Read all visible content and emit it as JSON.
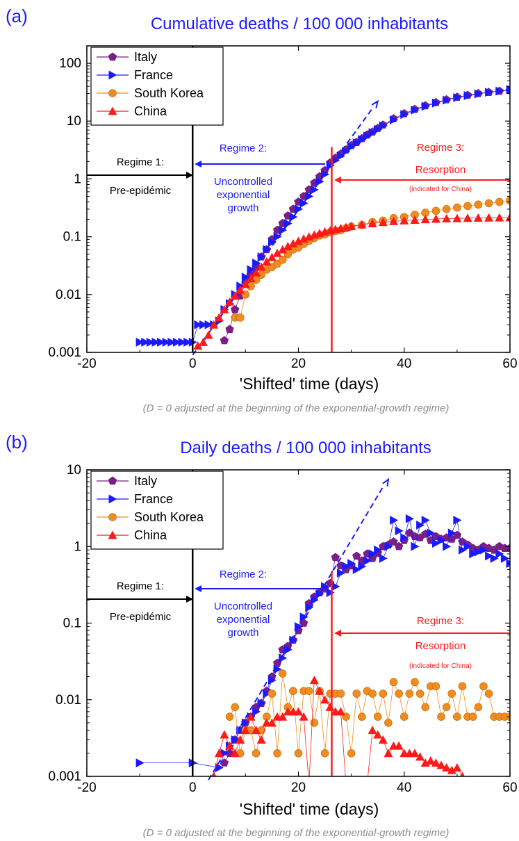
{
  "chart_data": [
    {
      "panel_label": "(a)",
      "type": "scatter",
      "title": "Cumulative deaths / 100 000 inhabitants",
      "xlabel": "'Shifted' time (days)",
      "ylabel": "",
      "xlim": [
        -20,
        60
      ],
      "ylim": [
        0.001,
        200
      ],
      "yscale": "log",
      "x_ticks": [
        -20,
        0,
        20,
        40,
        60
      ],
      "y_ticks": [
        {
          "value": 0.001,
          "label": "0.001"
        },
        {
          "value": 0.01,
          "label": "0.01"
        },
        {
          "value": 0.1,
          "label": "0.1"
        },
        {
          "value": 1,
          "label": "1"
        },
        {
          "value": 10,
          "label": "10"
        },
        {
          "value": 100,
          "label": "100"
        }
      ],
      "note": "(D = 0 adjusted at the beginning of the exponential-growth regime)",
      "legend_position": "top-left",
      "series": [
        {
          "name": "Italy",
          "color": "#7a1f85",
          "marker": "pentagon",
          "x": [
            6,
            7,
            8,
            9,
            10,
            11,
            12,
            13,
            14,
            15,
            16,
            17,
            18,
            19,
            20,
            21,
            22,
            23,
            24,
            25,
            26,
            27,
            28,
            29,
            30,
            31,
            32,
            33,
            34,
            35,
            36,
            38,
            40,
            42,
            44,
            46,
            48,
            50,
            52,
            54,
            56,
            58,
            60
          ],
          "y": [
            0.0016,
            0.0025,
            0.0055,
            0.0095,
            0.016,
            0.022,
            0.03,
            0.045,
            0.06,
            0.09,
            0.13,
            0.17,
            0.23,
            0.3,
            0.4,
            0.5,
            0.65,
            0.85,
            1.1,
            1.4,
            1.9,
            2.3,
            2.7,
            3.2,
            3.8,
            4.3,
            5.0,
            5.8,
            6.5,
            7.5,
            8.6,
            11,
            13.5,
            16,
            18.5,
            21,
            23.5,
            26,
            28,
            30,
            31.5,
            33,
            34
          ]
        },
        {
          "name": "France",
          "color": "#1a1aff",
          "marker": "triangle-right",
          "x": [
            -10,
            -9,
            -8,
            -7,
            -6,
            -5,
            -4,
            -3,
            -2,
            -1,
            0,
            1,
            2,
            3,
            4,
            5,
            6,
            7,
            8,
            9,
            10,
            11,
            12,
            13,
            14,
            15,
            16,
            17,
            18,
            19,
            20,
            21,
            22,
            23,
            24,
            25,
            26,
            27,
            28,
            29,
            30,
            31,
            32,
            33,
            34,
            35,
            36,
            38,
            40,
            42,
            44,
            46,
            48,
            50,
            52,
            54,
            56,
            58,
            60
          ],
          "y": [
            0.0015,
            0.0015,
            0.0015,
            0.0015,
            0.0015,
            0.0015,
            0.0015,
            0.0015,
            0.0015,
            0.0015,
            0.0015,
            0.003,
            0.003,
            0.003,
            0.003,
            0.0035,
            0.0055,
            0.007,
            0.01,
            0.014,
            0.02,
            0.027,
            0.035,
            0.045,
            0.06,
            0.08,
            0.1,
            0.13,
            0.17,
            0.22,
            0.3,
            0.38,
            0.5,
            0.65,
            0.9,
            1.2,
            1.7,
            2.1,
            2.5,
            3.0,
            3.6,
            4.2,
            4.8,
            5.5,
            6.3,
            7.2,
            8.3,
            10.5,
            13,
            15.5,
            18,
            20.5,
            23,
            25.5,
            27.5,
            29.5,
            31.5,
            33,
            35
          ]
        },
        {
          "name": "South Korea",
          "color": "#f08c1e",
          "marker": "circle",
          "x": [
            8,
            9,
            10,
            11,
            12,
            13,
            14,
            15,
            16,
            17,
            18,
            19,
            20,
            21,
            22,
            23,
            24,
            25,
            26,
            27,
            28,
            29,
            30,
            32,
            34,
            36,
            38,
            40,
            42,
            44,
            46,
            48,
            50,
            52,
            54,
            56,
            58,
            60
          ],
          "y": [
            0.004,
            0.004,
            0.01,
            0.014,
            0.018,
            0.022,
            0.027,
            0.03,
            0.034,
            0.04,
            0.05,
            0.06,
            0.065,
            0.075,
            0.085,
            0.095,
            0.105,
            0.11,
            0.12,
            0.125,
            0.13,
            0.14,
            0.15,
            0.16,
            0.18,
            0.19,
            0.21,
            0.22,
            0.24,
            0.26,
            0.28,
            0.3,
            0.32,
            0.34,
            0.36,
            0.38,
            0.4,
            0.42
          ]
        },
        {
          "name": "China",
          "color": "#ff1a1a",
          "marker": "triangle-up",
          "x": [
            1,
            2,
            3,
            4,
            5,
            6,
            7,
            8,
            9,
            10,
            11,
            12,
            13,
            14,
            15,
            16,
            17,
            18,
            19,
            20,
            21,
            22,
            23,
            24,
            25,
            26,
            27,
            28,
            29,
            30,
            32,
            34,
            36,
            38,
            40,
            42,
            44,
            46,
            48,
            50,
            52,
            54,
            56,
            58,
            60
          ],
          "y": [
            0.0013,
            0.0015,
            0.002,
            0.003,
            0.004,
            0.0055,
            0.0075,
            0.0095,
            0.012,
            0.015,
            0.019,
            0.024,
            0.03,
            0.037,
            0.044,
            0.052,
            0.06,
            0.068,
            0.076,
            0.084,
            0.092,
            0.1,
            0.108,
            0.115,
            0.122,
            0.128,
            0.134,
            0.14,
            0.146,
            0.152,
            0.162,
            0.17,
            0.178,
            0.185,
            0.19,
            0.195,
            0.2,
            0.203,
            0.206,
            0.208,
            0.21,
            0.212,
            0.213,
            0.214,
            0.215
          ]
        }
      ],
      "fits": [
        {
          "color": "#1a1aff",
          "dashed": true,
          "x": [
            0,
            35
          ],
          "y": [
            0.0009,
            22
          ]
        }
      ],
      "regime_lines": [
        {
          "x": 0,
          "color": "#000000"
        },
        {
          "x": 26.3,
          "color": "#ff1a1a"
        }
      ],
      "annotations": {
        "regime1": {
          "title": "Regime 1:",
          "text": "Pre-epidémic",
          "color": "#000000"
        },
        "regime2": {
          "title": "Regime 2:",
          "lines": [
            "Uncontrolled",
            "exponential",
            "growth"
          ],
          "color": "#1a1aff"
        },
        "regime3": {
          "title": "Regime 3:",
          "text": "Resorption",
          "subtext": "(indicated for China)",
          "color": "#ff1a1a"
        }
      }
    },
    {
      "panel_label": "(b)",
      "type": "scatter",
      "title": "Daily deaths / 100 000 inhabitants",
      "xlabel": "'Shifted' time (days)",
      "ylabel": "",
      "xlim": [
        -20,
        60
      ],
      "ylim": [
        0.001,
        10
      ],
      "yscale": "log",
      "x_ticks": [
        -20,
        0,
        20,
        40,
        60
      ],
      "y_ticks": [
        {
          "value": 0.001,
          "label": "0.001"
        },
        {
          "value": 0.01,
          "label": "0.01"
        },
        {
          "value": 0.1,
          "label": "0.1"
        },
        {
          "value": 1,
          "label": "1"
        },
        {
          "value": 10,
          "label": "10"
        }
      ],
      "note": "(D = 0 adjusted at the beginning of the exponential-growth regime)",
      "legend_position": "top-left",
      "series": [
        {
          "name": "Italy",
          "color": "#7a1f85",
          "marker": "pentagon",
          "x": [
            6,
            7,
            8,
            9,
            10,
            11,
            12,
            13,
            14,
            15,
            16,
            17,
            18,
            19,
            20,
            21,
            22,
            23,
            24,
            25,
            26,
            27,
            28,
            29,
            30,
            31,
            32,
            33,
            34,
            35,
            36,
            37,
            38,
            39,
            40,
            41,
            42,
            43,
            44,
            45,
            46,
            47,
            48,
            49,
            50,
            51,
            52,
            53,
            54,
            55,
            56,
            57,
            58,
            59,
            60
          ],
          "y": [
            0.0015,
            0.002,
            0.003,
            0.004,
            0.005,
            0.006,
            0.008,
            0.009,
            0.013,
            0.02,
            0.03,
            0.045,
            0.05,
            0.06,
            0.08,
            0.1,
            0.18,
            0.22,
            0.25,
            0.28,
            0.33,
            0.72,
            0.56,
            0.5,
            0.56,
            0.75,
            0.65,
            0.8,
            0.7,
            0.82,
            1.0,
            1.05,
            1.15,
            1.0,
            1.2,
            1.5,
            1.35,
            1.3,
            1.45,
            1.2,
            1.35,
            1.25,
            1.3,
            1.25,
            1.4,
            1.15,
            1.05,
            0.95,
            0.9,
            1.0,
            0.95,
            0.9,
            1.0,
            0.95,
            0.95
          ]
        },
        {
          "name": "France",
          "color": "#1a1aff",
          "marker": "triangle-right",
          "x": [
            -10,
            0,
            5,
            6,
            7,
            8,
            9,
            10,
            11,
            12,
            13,
            14,
            15,
            16,
            17,
            18,
            19,
            20,
            21,
            22,
            23,
            24,
            25,
            26,
            27,
            28,
            29,
            30,
            31,
            32,
            33,
            34,
            35,
            36,
            37,
            38,
            39,
            40,
            41,
            42,
            43,
            44,
            45,
            46,
            47,
            48,
            49,
            50,
            51,
            52,
            53,
            54,
            55,
            56,
            57,
            58,
            59,
            60
          ],
          "y": [
            0.0015,
            0.0015,
            0.0013,
            0.002,
            0.0025,
            0.003,
            0.004,
            0.005,
            0.006,
            0.007,
            0.009,
            0.012,
            0.018,
            0.025,
            0.035,
            0.045,
            0.06,
            0.09,
            0.12,
            0.16,
            0.2,
            0.24,
            0.3,
            0.25,
            0.3,
            0.45,
            0.55,
            0.6,
            0.5,
            0.55,
            0.65,
            0.8,
            0.9,
            0.7,
            1.0,
            2.2,
            1.6,
            1.3,
            2.3,
            1.0,
            1.9,
            2.2,
            1.5,
            1.1,
            1.2,
            1.0,
            1.5,
            2.2,
            0.9,
            1.0,
            0.8,
            0.85,
            0.9,
            0.75,
            0.7,
            0.8,
            0.7,
            0.6
          ]
        },
        {
          "name": "South Korea",
          "color": "#f08c1e",
          "marker": "circle",
          "x": [
            7,
            8,
            9,
            10,
            11,
            12,
            13,
            14,
            15,
            16,
            17,
            18,
            19,
            20,
            21,
            22,
            23,
            24,
            25,
            26,
            27,
            28,
            29,
            30,
            31,
            32,
            33,
            34,
            35,
            36,
            37,
            38,
            39,
            40,
            41,
            42,
            43,
            44,
            45,
            46,
            47,
            48,
            49,
            50,
            51,
            52,
            53,
            54,
            55,
            56,
            57,
            58,
            59,
            60
          ],
          "y": [
            0.006,
            0.008,
            0.002,
            0.004,
            0.004,
            0.002,
            0.004,
            0.006,
            0.012,
            0.002,
            0.022,
            0.008,
            0.013,
            0.002,
            0.013,
            0.013,
            0.005,
            0.013,
            0.002,
            0.012,
            0.012,
            0.012,
            0.006,
            0.002,
            0.012,
            0.006,
            0.013,
            0.012,
            0.006,
            0.012,
            0.005,
            0.017,
            0.012,
            0.006,
            0.012,
            0.017,
            0.012,
            0.008,
            0.015,
            0.015,
            0.006,
            0.008,
            0.012,
            0.006,
            0.015,
            0.006,
            0.006,
            0.008,
            0.015,
            0.012,
            0.006,
            0.006,
            0.006,
            0.006
          ]
        },
        {
          "name": "China",
          "color": "#ff1a1a",
          "marker": "triangle-up",
          "x": [
            4,
            5,
            6,
            7,
            8,
            9,
            10,
            11,
            12,
            13,
            14,
            15,
            16,
            17,
            18,
            19,
            20,
            21,
            22,
            23,
            24,
            25,
            26,
            27,
            28,
            29,
            30,
            31,
            32,
            33,
            34,
            35,
            36,
            37,
            38,
            39,
            40,
            41,
            42,
            43,
            44,
            45,
            46,
            47,
            48,
            49,
            50,
            51,
            52,
            53,
            54,
            55,
            56,
            57,
            58,
            59,
            60
          ],
          "y": [
            0.001,
            0.002,
            0.0035,
            0.0025,
            0.002,
            0.003,
            0.004,
            0.006,
            0.004,
            0.003,
            0.005,
            0.005,
            0.006,
            0.006,
            0.007,
            0.007,
            0.007,
            0.006,
            0.0008,
            0.018,
            0.013,
            0.01,
            0.008,
            0.007,
            0.007,
            0.0008,
            0.0008,
            0.0008,
            0.0008,
            0.0008,
            0.004,
            0.0035,
            0.003,
            0.002,
            0.0025,
            0.0025,
            0.002,
            0.002,
            0.002,
            0.0018,
            0.0015,
            0.0016,
            0.0015,
            0.0014,
            0.0013,
            0.0012,
            0.0013,
            0.001,
            0.0009,
            0.0008,
            0.0008,
            0.0008,
            0.0008,
            0.0008,
            0.0008,
            0.0008,
            0.0008
          ]
        }
      ],
      "fits": [
        {
          "color": "#1a1aff",
          "dashed": true,
          "x": [
            3,
            37
          ],
          "y": [
            0.0009,
            7.5
          ]
        }
      ],
      "regime_lines": [
        {
          "x": 0,
          "color": "#000000"
        },
        {
          "x": 26.3,
          "color": "#ff1a1a"
        }
      ],
      "annotations": {
        "regime1": {
          "title": "Regime 1:",
          "text": "Pre-epidémic",
          "color": "#000000"
        },
        "regime2": {
          "title": "Regime 2:",
          "lines": [
            "Uncontrolled",
            "exponential",
            "growth"
          ],
          "color": "#1a1aff"
        },
        "regime3": {
          "title": "Regime 3:",
          "text": "Resorption",
          "subtext": "(indicated for China)",
          "color": "#ff1a1a"
        }
      }
    }
  ]
}
